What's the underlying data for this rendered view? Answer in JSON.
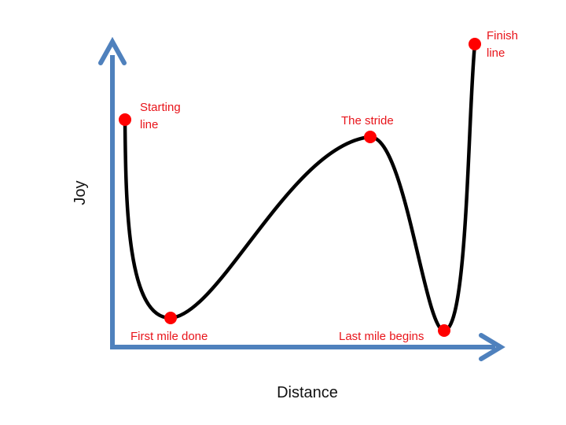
{
  "axes": {
    "x_label": "Distance",
    "y_label": "Joy",
    "color": "#4f81bd"
  },
  "curve": {
    "color": "#000000"
  },
  "points": [
    {
      "name": "starting-line",
      "label_lines": [
        "Starting",
        "line"
      ],
      "color": "#ff0000"
    },
    {
      "name": "first-mile-done",
      "label_lines": [
        "First mile done"
      ],
      "color": "#ff0000"
    },
    {
      "name": "the-stride",
      "label_lines": [
        "The stride"
      ],
      "color": "#ff0000"
    },
    {
      "name": "last-mile-begins",
      "label_lines": [
        "Last mile begins"
      ],
      "color": "#ff0000"
    },
    {
      "name": "finish-line",
      "label_lines": [
        "Finish",
        "line"
      ],
      "color": "#ff0000"
    }
  ]
}
